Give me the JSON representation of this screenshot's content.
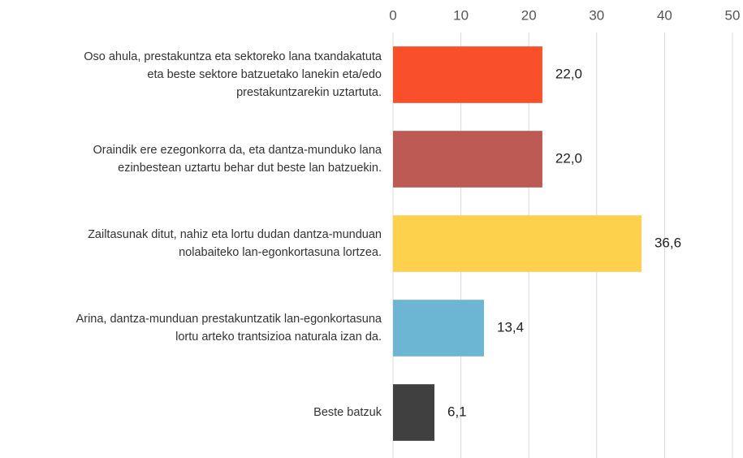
{
  "chart_data": {
    "type": "bar",
    "orientation": "horizontal",
    "categories": [
      [
        "Oso ahula, prestakuntza eta sektoreko lana txandakatuta",
        "eta beste sektore batzuetako lanekin eta/edo",
        "prestakuntzarekin uztartuta."
      ],
      [
        "Oraindik ere ezegonkorra da, eta dantza-munduko lana",
        "ezinbestean uztartu behar dut beste lan batzuekin."
      ],
      [
        "Zailtasunak ditut, nahiz eta lortu dudan dantza-munduan",
        "nolabaiteko lan-egonkortasuna lortzea."
      ],
      [
        "Arina, dantza-munduan prestakuntzatik lan-egonkortasuna",
        "lortu arteko trantsizioa naturala izan da."
      ],
      [
        "Beste batzuk"
      ]
    ],
    "values": [
      22.0,
      22.0,
      36.6,
      13.4,
      6.1
    ],
    "value_labels": [
      "22,0",
      "22,0",
      "36,6",
      "13,4",
      "6,1"
    ],
    "colors": [
      "#f94f2b",
      "#be5a54",
      "#fdd14c",
      "#6cb6d4",
      "#404040"
    ],
    "xlim": [
      0,
      50
    ],
    "xticks": [
      0,
      10,
      20,
      30,
      40,
      50
    ],
    "grid": true,
    "axis_position": "top"
  }
}
